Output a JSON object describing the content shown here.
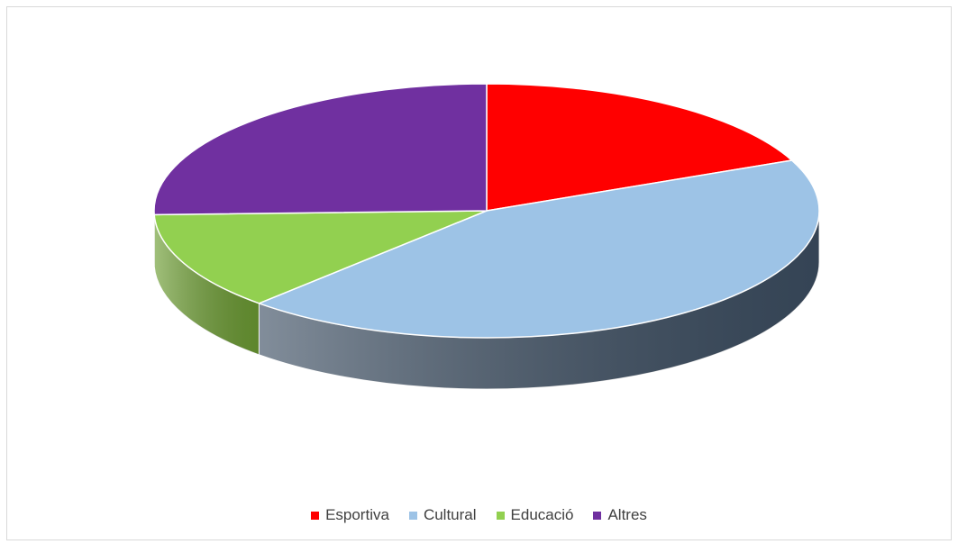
{
  "chart_data": {
    "type": "pie",
    "title": "",
    "categories": [
      "Esportiva",
      "Cultural",
      "Educació",
      "Altres"
    ],
    "values": [
      18.5,
      43.5,
      12.5,
      25.5
    ],
    "colors": [
      "#ff0000",
      "#9dc3e6",
      "#92d050",
      "#7030a0"
    ],
    "side_colors": [
      "#b00000",
      "#3e5064",
      "#6e9e34",
      "#4e2070"
    ],
    "style": "3d",
    "legend_position": "bottom"
  }
}
